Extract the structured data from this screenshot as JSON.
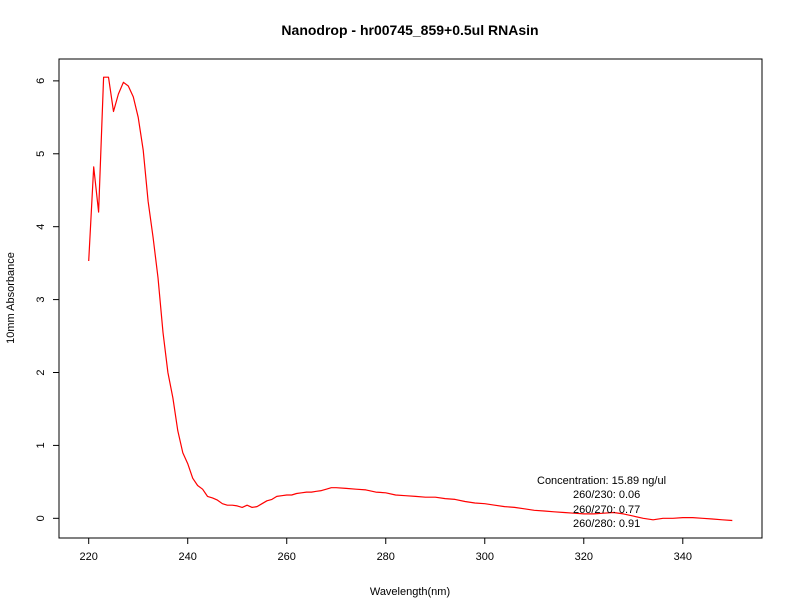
{
  "chart_data": {
    "type": "line",
    "title": "Nanodrop - hr00745_859+0.5ul RNAsin",
    "xlabel": "Wavelength(nm)",
    "ylabel": "10mm Absorbance",
    "xlim": [
      214,
      356
    ],
    "ylim": [
      -0.27,
      6.3
    ],
    "x_ticks": [
      220,
      240,
      260,
      280,
      300,
      320,
      340
    ],
    "y_ticks": [
      0,
      1,
      2,
      3,
      4,
      5,
      6
    ],
    "grid": false,
    "series": [
      {
        "color": "#ff0000",
        "x": [
          220,
          221,
          222,
          223,
          224,
          225,
          226,
          227,
          228,
          229,
          230,
          231,
          232,
          233,
          234,
          235,
          236,
          237,
          238,
          239,
          240,
          241,
          242,
          243,
          244,
          245,
          246,
          247,
          248,
          249,
          250,
          251,
          252,
          253,
          254,
          255,
          256,
          257,
          258,
          259,
          260,
          261,
          262,
          263,
          264,
          265,
          266,
          267,
          268,
          269,
          270,
          272,
          274,
          276,
          278,
          280,
          282,
          284,
          286,
          288,
          290,
          292,
          294,
          296,
          298,
          300,
          302,
          304,
          306,
          308,
          310,
          312,
          314,
          316,
          318,
          320,
          322,
          324,
          326,
          328,
          330,
          332,
          334,
          336,
          338,
          340,
          342,
          344,
          346,
          348,
          350
        ],
        "y": [
          3.53,
          4.82,
          4.2,
          6.05,
          6.05,
          5.58,
          5.82,
          5.98,
          5.93,
          5.78,
          5.5,
          5.05,
          4.35,
          3.85,
          3.3,
          2.55,
          2.0,
          1.65,
          1.2,
          0.9,
          0.75,
          0.55,
          0.45,
          0.4,
          0.3,
          0.28,
          0.25,
          0.2,
          0.18,
          0.18,
          0.17,
          0.15,
          0.18,
          0.15,
          0.16,
          0.2,
          0.24,
          0.26,
          0.3,
          0.31,
          0.32,
          0.32,
          0.34,
          0.35,
          0.36,
          0.36,
          0.37,
          0.38,
          0.4,
          0.42,
          0.42,
          0.41,
          0.4,
          0.39,
          0.36,
          0.35,
          0.32,
          0.31,
          0.3,
          0.29,
          0.29,
          0.27,
          0.26,
          0.23,
          0.21,
          0.2,
          0.18,
          0.16,
          0.15,
          0.13,
          0.11,
          0.1,
          0.09,
          0.08,
          0.07,
          0.06,
          0.06,
          0.07,
          0.08,
          0.06,
          0.03,
          0.0,
          -0.02,
          0.0,
          0.0,
          0.01,
          0.01,
          0.0,
          -0.01,
          -0.02,
          -0.03
        ]
      }
    ],
    "annotations": [
      "Concentration: 15.89 ng/ul",
      "260/230: 0.06",
      "260/270: 0.77",
      "260/280: 0.91"
    ]
  }
}
